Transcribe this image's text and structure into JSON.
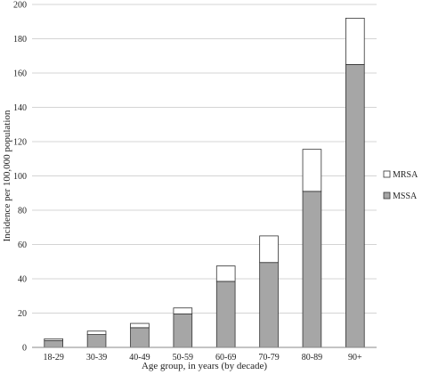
{
  "chart_data": {
    "type": "bar",
    "stacked": true,
    "title": "",
    "xlabel": "Age group, in years (by decade)",
    "ylabel": "Incidence per 100,000 population",
    "ylim": [
      0,
      200
    ],
    "yticks": [
      0,
      20,
      40,
      60,
      80,
      100,
      120,
      140,
      160,
      180,
      200
    ],
    "grid": true,
    "legend_position": "right",
    "categories": [
      "18-29",
      "30-39",
      "40-49",
      "50-59",
      "60-69",
      "70-79",
      "80-89",
      "90+"
    ],
    "series": [
      {
        "name": "MSSA",
        "values": [
          4,
          7.5,
          11.5,
          19.5,
          38.5,
          49.5,
          91,
          165
        ],
        "color": "#a6a6a6"
      },
      {
        "name": "MRSA",
        "values": [
          1,
          2,
          2.5,
          3.5,
          9,
          15.5,
          24.5,
          27
        ],
        "color": "#ffffff"
      }
    ],
    "legend_order": [
      "MRSA",
      "MSSA"
    ]
  }
}
